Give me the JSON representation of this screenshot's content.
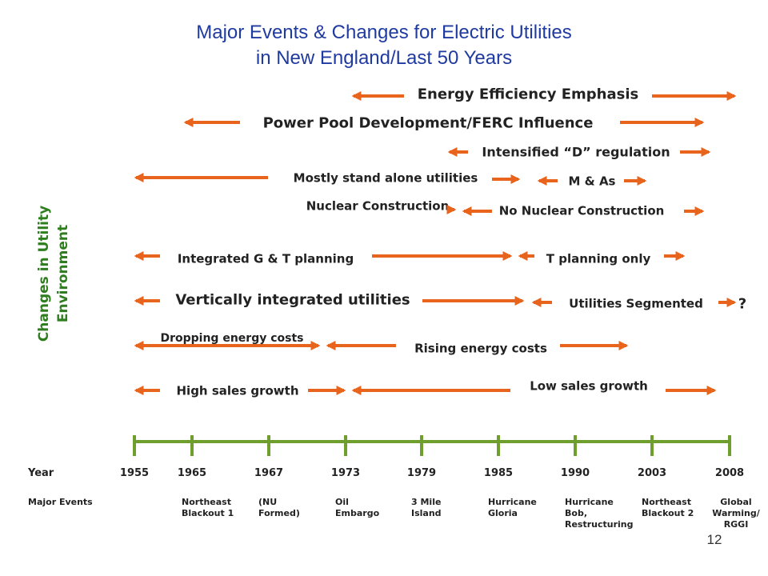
{
  "title": [
    "Major Events & Changes for Electric Utilities",
    "in New England/Last 50 Years"
  ],
  "side_label": [
    "Changes in Utility",
    "Environment"
  ],
  "changes": [
    "Energy Efficiency Emphasis",
    "Power Pool Development/FERC Influence",
    "Intensified “D” regulation",
    "Mostly stand alone utilities",
    "M & As",
    "Nuclear Construction",
    "No Nuclear Construction",
    "Integrated G & T planning",
    "T planning only",
    "Vertically integrated utilities",
    "Utilities Segmented",
    "?",
    "Dropping energy costs",
    "Rising energy costs",
    "High sales growth",
    "Low sales growth"
  ],
  "timeline": {
    "year_label": "Year",
    "years": [
      "1955",
      "1965",
      "1967",
      "1973",
      "1979",
      "1985",
      "1990",
      "2003",
      "2008"
    ],
    "events_label": "Major Events",
    "events": [
      [
        "Northeast",
        "Blackout 1"
      ],
      [
        "(NU",
        "Formed)"
      ],
      [
        "Oil",
        "Embargo"
      ],
      [
        "3 Mile",
        "Island"
      ],
      [
        "Hurricane",
        "Gloria"
      ],
      [
        "Hurricane",
        "Bob,",
        "Restructuring"
      ],
      [
        "Northeast",
        "Blackout 2"
      ],
      [
        "Global",
        "Warming/",
        "RGGI"
      ]
    ]
  },
  "page_number": "12"
}
